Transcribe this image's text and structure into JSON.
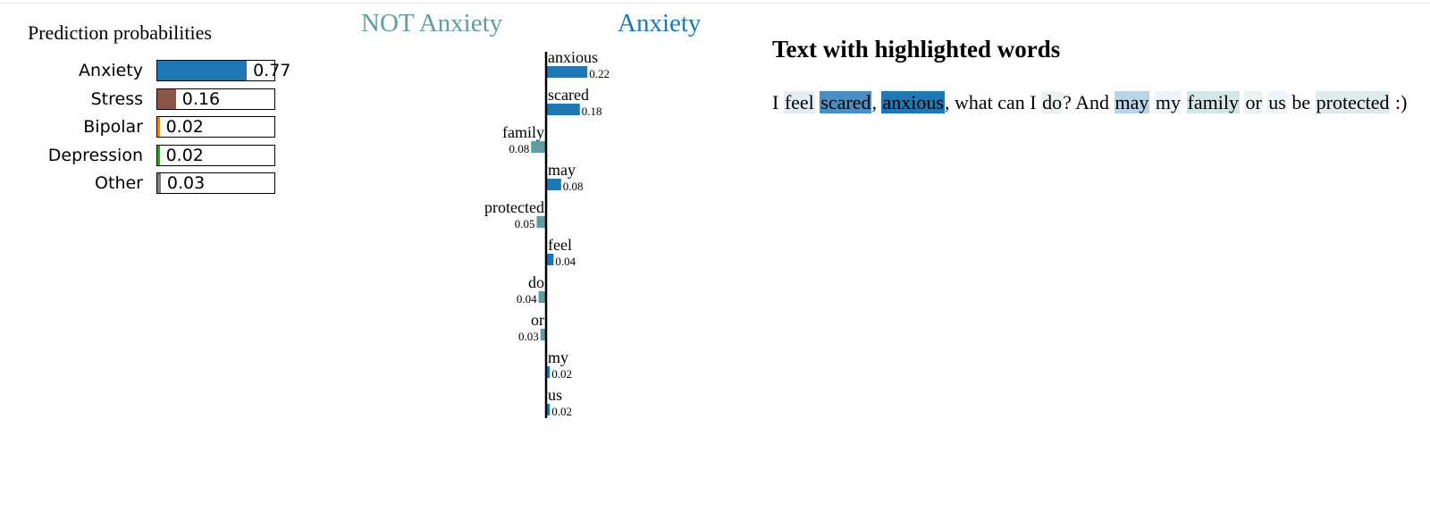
{
  "prediction": {
    "title": "Prediction probabilities",
    "rows": [
      {
        "label": "Anxiety",
        "value": 0.77,
        "value_text": "0.77",
        "color": "#1f77b4"
      },
      {
        "label": "Stress",
        "value": 0.16,
        "value_text": "0.16",
        "color": "#8c564b"
      },
      {
        "label": "Bipolar",
        "value": 0.02,
        "value_text": "0.02",
        "color": "#ff7f0e"
      },
      {
        "label": "Depression",
        "value": 0.02,
        "value_text": "0.02",
        "color": "#2ca02c"
      },
      {
        "label": "Other",
        "value": 0.03,
        "value_text": "0.03",
        "color": "#7f7f7f"
      }
    ]
  },
  "chart_data": {
    "type": "bar",
    "orientation": "horizontal",
    "class_negative": "NOT Anxiety",
    "class_positive": "Anxiety",
    "colors": {
      "negative": "#5f9ea0",
      "positive": "#1f77b4"
    },
    "features": [
      {
        "word": "anxious",
        "weight": 0.22,
        "label": "0.22"
      },
      {
        "word": "scared",
        "weight": 0.18,
        "label": "0.18"
      },
      {
        "word": "family",
        "weight": -0.08,
        "label": "0.08"
      },
      {
        "word": "may",
        "weight": 0.08,
        "label": "0.08"
      },
      {
        "word": "protected",
        "weight": -0.05,
        "label": "0.05"
      },
      {
        "word": "feel",
        "weight": 0.04,
        "label": "0.04"
      },
      {
        "word": "do",
        "weight": -0.04,
        "label": "0.04"
      },
      {
        "word": "or",
        "weight": -0.03,
        "label": "0.03"
      },
      {
        "word": "my",
        "weight": 0.02,
        "label": "0.02"
      },
      {
        "word": "us",
        "weight": 0.02,
        "label": "0.02"
      }
    ]
  },
  "highlight": {
    "title": "Text with highlighted words",
    "tokens": [
      {
        "text": "I ",
        "hl": null
      },
      {
        "text": "feel",
        "hl": "#e3edf3"
      },
      {
        "text": " ",
        "hl": null
      },
      {
        "text": "scared",
        "hl": "#4a8fc4"
      },
      {
        "text": ", ",
        "hl": null
      },
      {
        "text": "anxious",
        "hl": "#1f77b4"
      },
      {
        "text": ", what can I ",
        "hl": null
      },
      {
        "text": "do",
        "hl": "#e9f1f1"
      },
      {
        "text": "? And ",
        "hl": null
      },
      {
        "text": "may",
        "hl": "#b9d3e7"
      },
      {
        "text": " ",
        "hl": null
      },
      {
        "text": "my",
        "hl": "#eef4f8"
      },
      {
        "text": " ",
        "hl": null
      },
      {
        "text": "family",
        "hl": "#d5e6e6"
      },
      {
        "text": " ",
        "hl": null
      },
      {
        "text": "or",
        "hl": "#eaf2f2"
      },
      {
        "text": " ",
        "hl": null
      },
      {
        "text": "us",
        "hl": "#eef4f8"
      },
      {
        "text": " be ",
        "hl": null
      },
      {
        "text": "protected",
        "hl": "#dfeaea"
      },
      {
        "text": " :)",
        "hl": null
      }
    ]
  }
}
